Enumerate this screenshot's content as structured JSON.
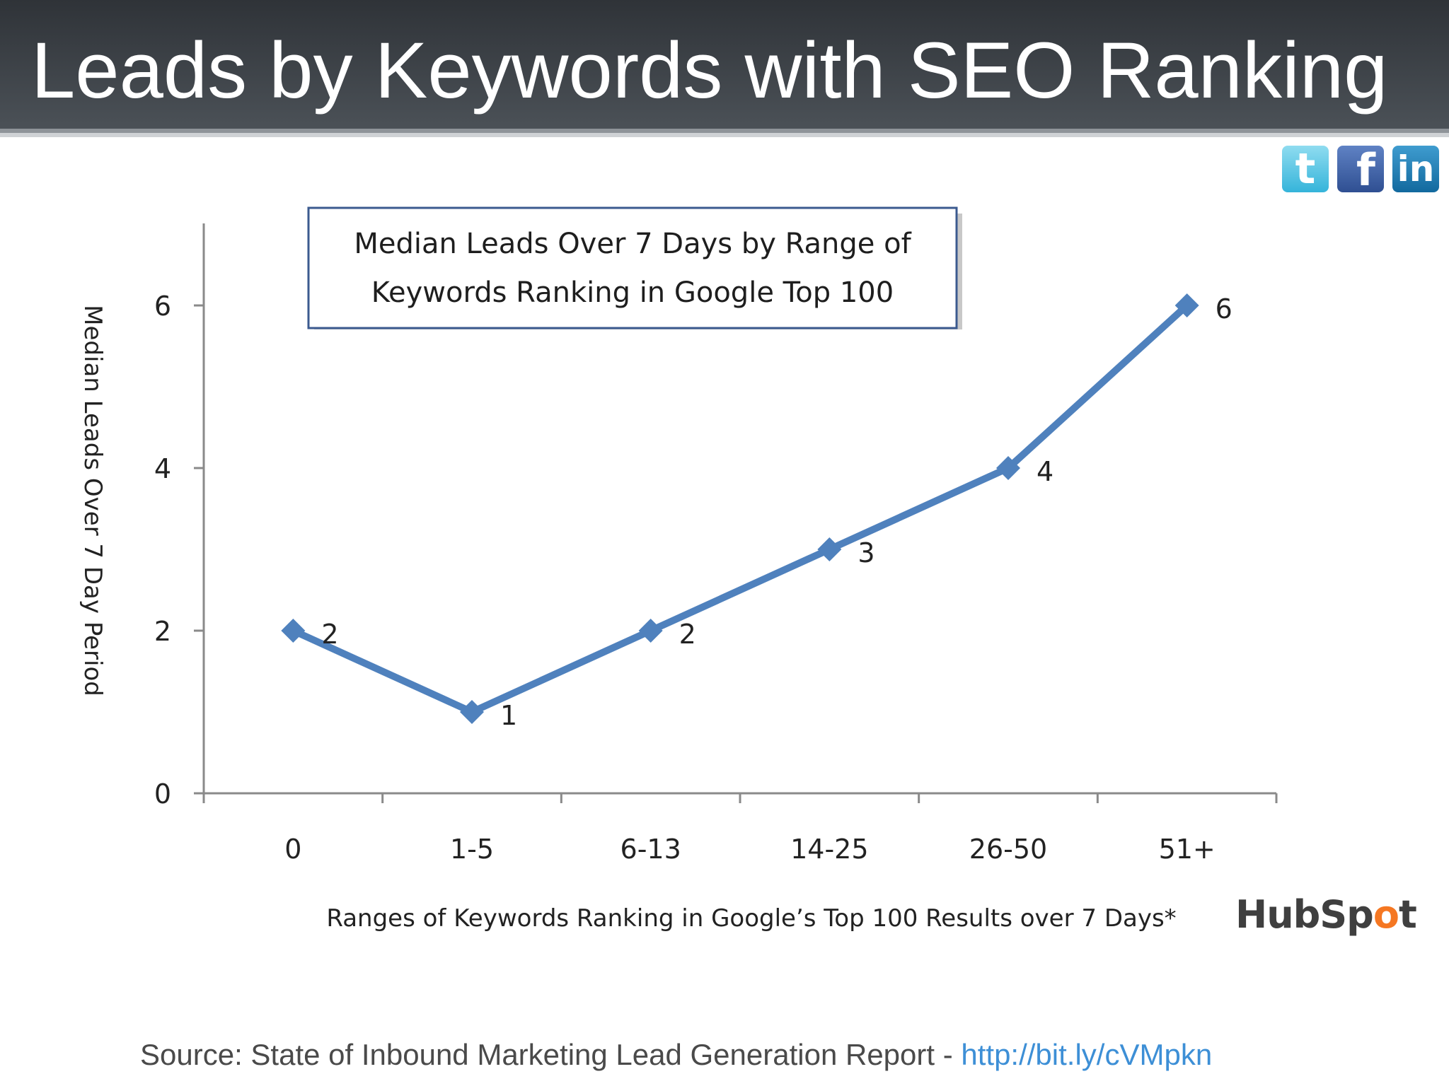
{
  "header": {
    "title": "Leads by Keywords with SEO Ranking"
  },
  "social": {
    "twitter_glyph": "t",
    "facebook_glyph": "f",
    "linkedin_glyph": "in"
  },
  "chart_data": {
    "type": "line",
    "title_line1": "Median Leads Over 7 Days by Range of",
    "title_line2": "Keywords Ranking in Google Top 100",
    "xlabel": "Ranges of Keywords Ranking in Google’s Top 100 Results over 7 Days*",
    "ylabel": "Median Leads Over 7 Day Period",
    "categories": [
      "0",
      "1-5",
      "6-13",
      "14-25",
      "26-50",
      "51+"
    ],
    "series": [
      {
        "values": [
          2,
          1,
          2,
          3,
          4,
          6
        ],
        "color": "#4f81bd"
      }
    ],
    "data_labels": [
      "2",
      "1",
      "2",
      "3",
      "4",
      "6"
    ],
    "yticks": [
      0,
      2,
      4,
      6
    ],
    "ylim": [
      0,
      7
    ],
    "grid": false,
    "legend": "none"
  },
  "branding": {
    "logo_part1": "HubSp",
    "logo_o": "o",
    "logo_part2": "t"
  },
  "footer": {
    "source_text": "Source: State of Inbound Marketing Lead Generation Report - ",
    "source_link": "http://bit.ly/cVMpkn"
  }
}
